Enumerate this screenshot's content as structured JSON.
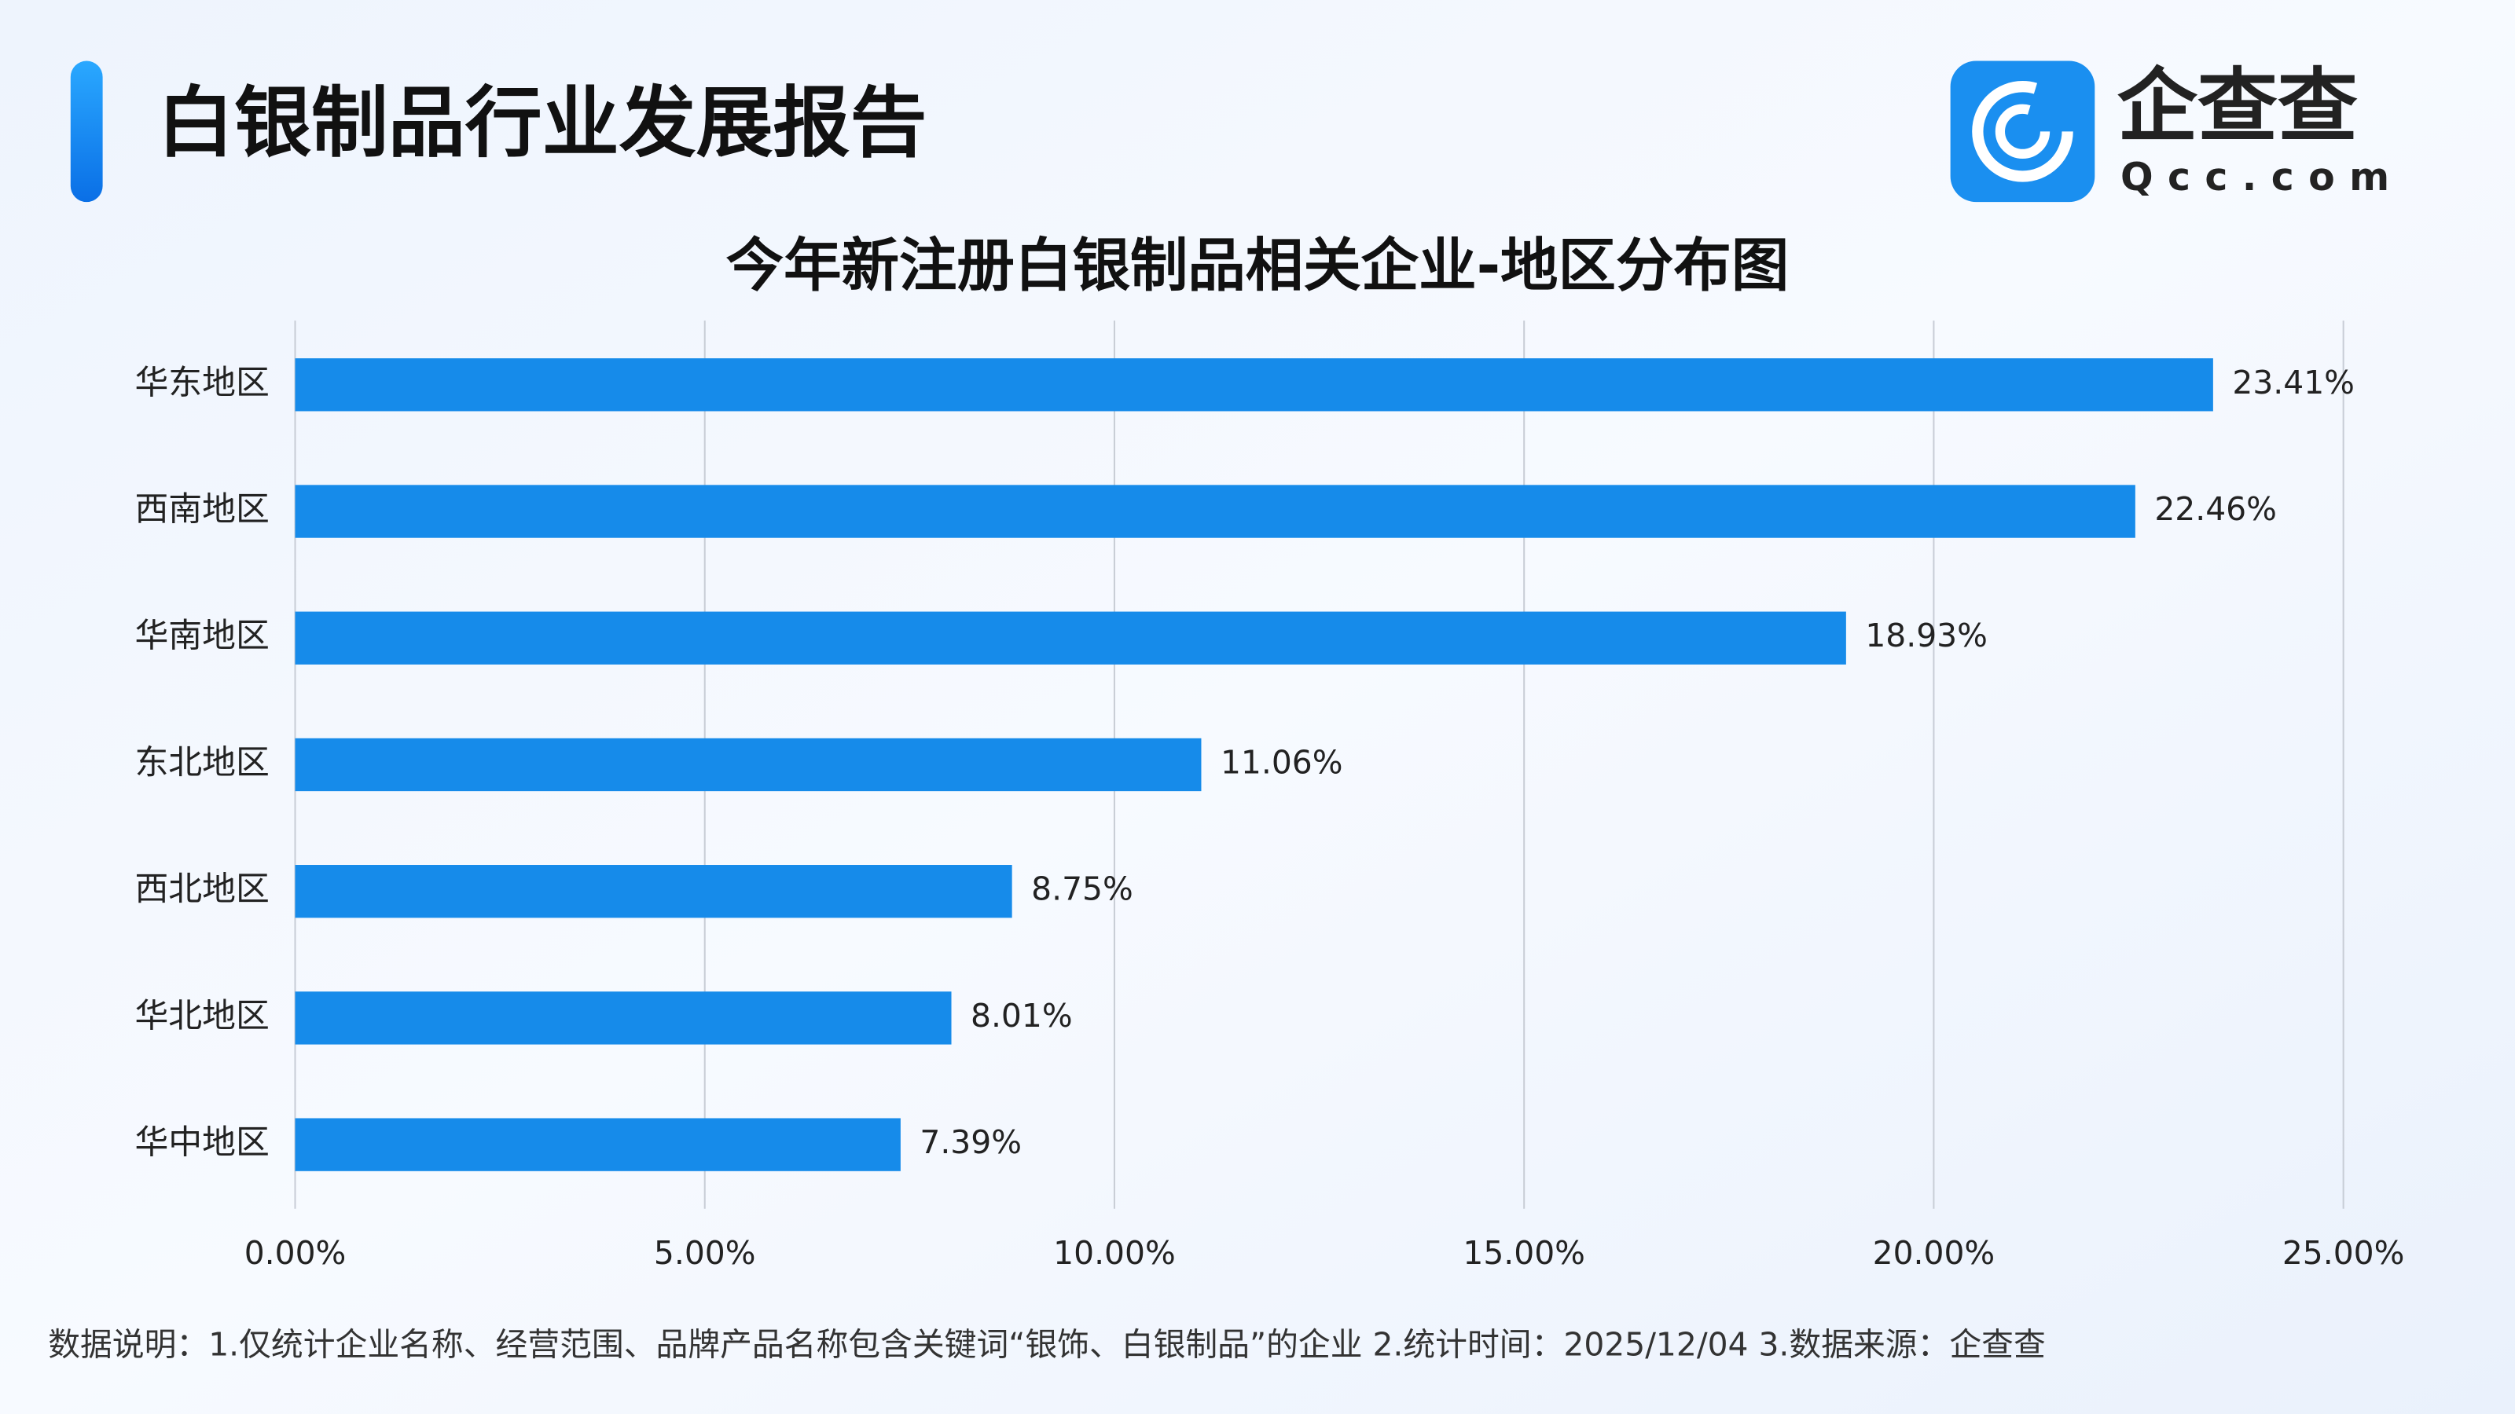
{
  "header": {
    "title": "白银制品行业发展报告",
    "logo_name": "企查查",
    "logo_domain": "Qcc.com"
  },
  "chart_data": {
    "type": "bar",
    "orientation": "horizontal",
    "title": "今年新注册白银制品相关企业-地区分布图",
    "categories": [
      "华东地区",
      "西南地区",
      "华南地区",
      "东北地区",
      "西北地区",
      "华北地区",
      "华中地区"
    ],
    "values": [
      23.41,
      22.46,
      18.93,
      11.06,
      8.75,
      8.01,
      7.39
    ],
    "value_labels": [
      "23.41%",
      "22.46%",
      "18.93%",
      "11.06%",
      "8.75%",
      "8.01%",
      "7.39%"
    ],
    "color": "#168bea",
    "xlim": [
      0,
      25
    ],
    "xticks": [
      {
        "value": 0,
        "label": "0.00%"
      },
      {
        "value": 5,
        "label": "5.00%"
      },
      {
        "value": 10,
        "label": "10.00%"
      },
      {
        "value": 15,
        "label": "15.00%"
      },
      {
        "value": 20,
        "label": "20.00%"
      },
      {
        "value": 25,
        "label": "25.00%"
      }
    ],
    "grid": true
  },
  "footnote": "数据说明：1.仅统计企业名称、经营范围、品牌产品名称包含关键词“银饰、白银制品”的企业  2.统计时间：2025/12/04   3.数据来源：企查查"
}
